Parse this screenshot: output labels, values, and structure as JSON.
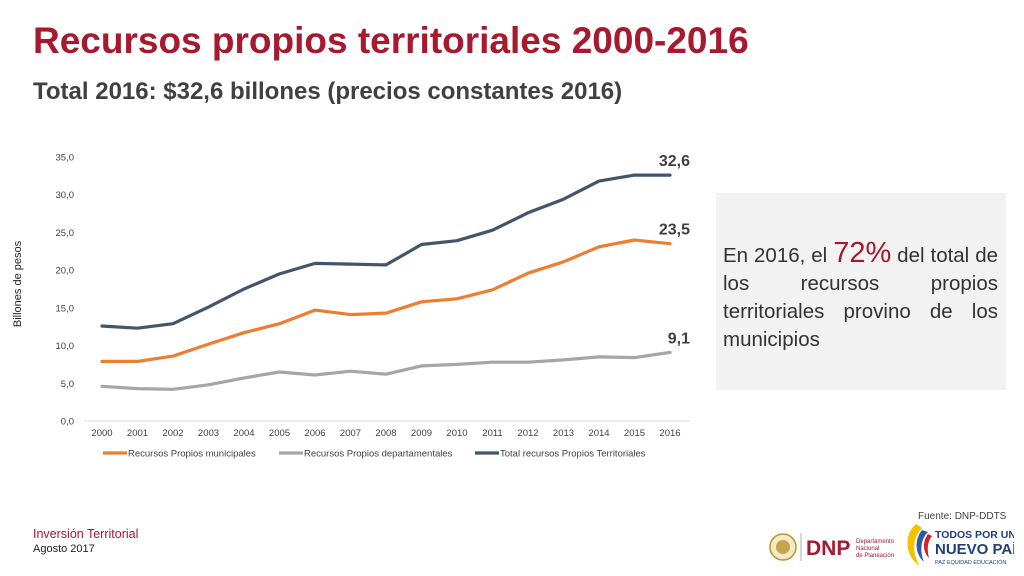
{
  "header": {
    "title": "Recursos propios territoriales 2000-2016",
    "subtitle": "Total 2016: $32,6 billones (precios constantes 2016)"
  },
  "callout": {
    "text_before": "En 2016, el ",
    "percent": "72%",
    "text_after": " del total de los recursos propios territoriales provino de los municipios"
  },
  "chart_data": {
    "type": "line",
    "ylabel": "Billones de pesos",
    "ylim": [
      0,
      35
    ],
    "yticks": [
      "0,0",
      "5,0",
      "10,0",
      "15,0",
      "20,0",
      "25,0",
      "30,0",
      "35,0"
    ],
    "x": [
      "2000",
      "2001",
      "2002",
      "2003",
      "2004",
      "2005",
      "2006",
      "2007",
      "2008",
      "2009",
      "2010",
      "2011",
      "2012",
      "2013",
      "2014",
      "2015",
      "2016"
    ],
    "grid": false,
    "legend_position": "bottom",
    "series": [
      {
        "name": "Recursos Propios municipales",
        "color": "#ed7d31",
        "values": [
          7.9,
          7.9,
          8.6,
          10.2,
          11.7,
          12.9,
          14.7,
          14.1,
          14.3,
          15.8,
          16.2,
          17.4,
          19.6,
          21.1,
          23.1,
          24.0,
          23.5
        ],
        "end_label": "23,5"
      },
      {
        "name": "Recursos Propios departamentales",
        "color": "#a6a6a6",
        "values": [
          4.6,
          4.3,
          4.2,
          4.8,
          5.7,
          6.5,
          6.1,
          6.6,
          6.2,
          7.3,
          7.5,
          7.8,
          7.8,
          8.1,
          8.5,
          8.4,
          9.1
        ],
        "end_label": "9,1"
      },
      {
        "name": "Total recursos Propios Territoriales",
        "color": "#44546a",
        "values": [
          12.6,
          12.3,
          12.9,
          15.1,
          17.5,
          19.5,
          20.9,
          20.8,
          20.7,
          23.4,
          23.9,
          25.3,
          27.6,
          29.4,
          31.8,
          32.6,
          32.6
        ],
        "end_label": "32,6"
      }
    ]
  },
  "source": "Fuente: DNP-DDTS",
  "footer": {
    "title": "Inversión Territorial",
    "date": "Agosto 2017"
  },
  "logos": {
    "dnp": {
      "mark": "DNP",
      "line1": "Departamento",
      "line2": "Nacional",
      "line3": "de Planeación"
    },
    "gobierno": {
      "line1": "TODOS POR UN",
      "line2": "NUEVO PAÍS",
      "line3": "PAZ   EQUIDAD   EDUCACIÓN"
    }
  }
}
